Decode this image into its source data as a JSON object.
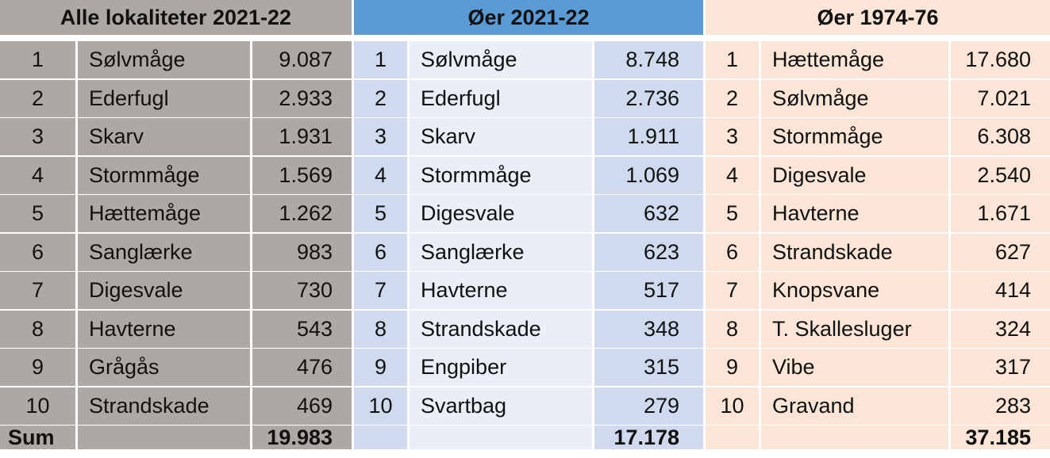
{
  "tables": [
    {
      "title": "Alle lokaliteter 2021-22",
      "colors": {
        "header": "#aea8a5",
        "header_text": "#111111",
        "cell": "#aea8a5"
      },
      "rows": [
        {
          "rank": "1",
          "species": "Sølvmåge",
          "count": "9.087"
        },
        {
          "rank": "2",
          "species": "Ederfugl",
          "count": "2.933"
        },
        {
          "rank": "3",
          "species": "Skarv",
          "count": "1.931"
        },
        {
          "rank": "4",
          "species": "Stormmåge",
          "count": "1.569"
        },
        {
          "rank": "5",
          "species": "Hættemåge",
          "count": "1.262"
        },
        {
          "rank": "6",
          "species": "Sanglærke",
          "count": "983"
        },
        {
          "rank": "7",
          "species": "Digesvale",
          "count": "730"
        },
        {
          "rank": "8",
          "species": "Havterne",
          "count": "543"
        },
        {
          "rank": "9",
          "species": "Grågås",
          "count": "476"
        },
        {
          "rank": "10",
          "species": "Strandskade",
          "count": "469"
        }
      ],
      "sum_label": "Sum",
      "sum": "19.983"
    },
    {
      "title": "Øer 2021-22",
      "colors": {
        "header": "#5b9bd5",
        "header_text": "#111111",
        "row_dark": "#cfdaee",
        "row_light": "#e9eef7"
      },
      "rows": [
        {
          "rank": "1",
          "species": "Sølvmåge",
          "count": "8.748"
        },
        {
          "rank": "2",
          "species": "Ederfugl",
          "count": "2.736"
        },
        {
          "rank": "3",
          "species": "Skarv",
          "count": "1.911"
        },
        {
          "rank": "4",
          "species": "Stormmåge",
          "count": "1.069"
        },
        {
          "rank": "5",
          "species": "Digesvale",
          "count": "632"
        },
        {
          "rank": "6",
          "species": "Sanglærke",
          "count": "623"
        },
        {
          "rank": "7",
          "species": "Havterne",
          "count": "517"
        },
        {
          "rank": "8",
          "species": "Strandskade",
          "count": "348"
        },
        {
          "rank": "9",
          "species": "Engpiber",
          "count": "315"
        },
        {
          "rank": "10",
          "species": "Svartbag",
          "count": "279"
        }
      ],
      "sum_label": "",
      "sum": "17.178"
    },
    {
      "title": "Øer 1974-76",
      "colors": {
        "header": "#fbe5d6",
        "header_text": "#111111",
        "cell": "#fbe5d6"
      },
      "rows": [
        {
          "rank": "1",
          "species": "Hættemåge",
          "count": "17.680"
        },
        {
          "rank": "2",
          "species": "Sølvmåge",
          "count": "7.021"
        },
        {
          "rank": "3",
          "species": "Stormmåge",
          "count": "6.308"
        },
        {
          "rank": "4",
          "species": "Digesvale",
          "count": "2.540"
        },
        {
          "rank": "5",
          "species": "Havterne",
          "count": "1.671"
        },
        {
          "rank": "6",
          "species": "Strandskade",
          "count": "627"
        },
        {
          "rank": "7",
          "species": "Knopsvane",
          "count": "414"
        },
        {
          "rank": "8",
          "species": "T. Skallesluger",
          "count": "324"
        },
        {
          "rank": "9",
          "species": "Vibe",
          "count": "317"
        },
        {
          "rank": "10",
          "species": "Gravand",
          "count": "283"
        }
      ],
      "sum_label": "",
      "sum": "37.185"
    }
  ]
}
